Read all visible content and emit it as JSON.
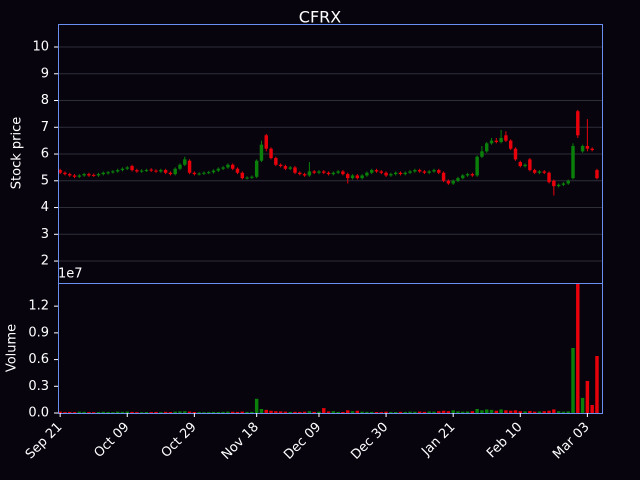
{
  "chart_data": {
    "type": "candlestick",
    "title": "CFRX",
    "ylabel": "Stock price",
    "volume_ylabel": "Volume",
    "volume_offset_label": "1e7",
    "up_color": "#0a7f0a",
    "down_color": "#e8000b",
    "grid": true,
    "x": [
      "Sep 21",
      null,
      null,
      null,
      null,
      null,
      null,
      null,
      null,
      null,
      null,
      null,
      null,
      null,
      "Oct 09",
      null,
      null,
      null,
      null,
      null,
      null,
      null,
      null,
      null,
      null,
      null,
      null,
      null,
      "Oct 29",
      null,
      null,
      null,
      null,
      null,
      null,
      null,
      null,
      null,
      null,
      null,
      null,
      "Nov 18",
      null,
      null,
      null,
      null,
      null,
      null,
      null,
      null,
      null,
      null,
      null,
      null,
      "Dec 09",
      null,
      null,
      null,
      null,
      null,
      null,
      null,
      null,
      null,
      null,
      null,
      null,
      null,
      "Dec 30",
      null,
      null,
      null,
      null,
      null,
      null,
      null,
      null,
      null,
      null,
      null,
      null,
      null,
      "Jan 21",
      null,
      null,
      null,
      null,
      null,
      null,
      null,
      null,
      null,
      null,
      null,
      null,
      null,
      "Feb 10",
      null,
      null,
      null,
      null,
      null,
      null,
      null,
      null,
      null,
      null,
      null,
      null,
      null,
      "Mar 03",
      null,
      null
    ],
    "open": [
      5.4,
      5.3,
      5.25,
      5.2,
      5.15,
      5.2,
      5.25,
      5.22,
      5.2,
      5.25,
      5.28,
      5.32,
      5.35,
      5.4,
      5.45,
      5.55,
      5.4,
      5.35,
      5.38,
      5.42,
      5.38,
      5.35,
      5.4,
      5.3,
      5.25,
      5.45,
      5.6,
      5.75,
      5.3,
      5.25,
      5.27,
      5.3,
      5.32,
      5.38,
      5.45,
      5.5,
      5.6,
      5.45,
      5.3,
      5.1,
      5.12,
      5.15,
      5.75,
      6.7,
      6.2,
      5.85,
      5.6,
      5.55,
      5.45,
      5.5,
      5.3,
      5.25,
      5.2,
      5.35,
      5.3,
      5.35,
      5.3,
      5.25,
      5.3,
      5.35,
      5.25,
      5.1,
      5.2,
      5.1,
      5.2,
      5.3,
      5.4,
      5.35,
      5.3,
      5.2,
      5.25,
      5.3,
      5.25,
      5.3,
      5.35,
      5.4,
      5.35,
      5.3,
      5.35,
      5.4,
      5.3,
      5.0,
      4.9,
      5.0,
      5.1,
      5.2,
      5.25,
      5.2,
      5.9,
      6.1,
      6.4,
      6.5,
      6.45,
      6.7,
      6.5,
      6.2,
      5.7,
      5.55,
      5.8,
      5.4,
      5.3,
      5.35,
      5.3,
      5.0,
      4.8,
      4.85,
      4.9,
      5.1,
      7.6,
      6.1,
      6.3,
      6.2,
      5.4
    ],
    "high": [
      5.45,
      5.35,
      5.3,
      5.25,
      5.25,
      5.3,
      5.3,
      5.27,
      5.3,
      5.35,
      5.37,
      5.4,
      5.45,
      5.5,
      5.55,
      5.6,
      5.45,
      5.43,
      5.45,
      5.47,
      5.43,
      5.45,
      5.45,
      5.35,
      5.5,
      5.65,
      5.9,
      5.8,
      5.35,
      5.32,
      5.35,
      5.37,
      5.43,
      5.5,
      5.55,
      5.65,
      5.65,
      5.5,
      5.35,
      5.17,
      5.2,
      5.8,
      6.5,
      6.75,
      6.25,
      5.9,
      5.65,
      5.6,
      5.55,
      5.55,
      5.35,
      5.3,
      5.7,
      5.4,
      5.4,
      5.4,
      5.35,
      5.35,
      5.4,
      5.4,
      5.3,
      5.25,
      5.25,
      5.25,
      5.35,
      5.45,
      5.45,
      5.4,
      5.35,
      5.3,
      5.35,
      5.35,
      5.35,
      5.4,
      5.45,
      5.45,
      5.4,
      5.4,
      5.45,
      5.45,
      5.35,
      5.05,
      5.05,
      5.15,
      5.25,
      5.3,
      5.3,
      5.95,
      6.3,
      6.45,
      6.6,
      6.6,
      6.9,
      6.85,
      6.55,
      6.25,
      5.75,
      5.65,
      5.85,
      5.45,
      5.4,
      5.4,
      5.35,
      5.05,
      4.9,
      4.95,
      5.05,
      6.4,
      7.65,
      6.35,
      7.3,
      6.25,
      5.45
    ],
    "low": [
      5.25,
      5.2,
      5.15,
      5.1,
      5.1,
      5.15,
      5.15,
      5.15,
      5.15,
      5.2,
      5.23,
      5.27,
      5.3,
      5.35,
      5.4,
      5.35,
      5.3,
      5.3,
      5.33,
      5.33,
      5.3,
      5.3,
      5.25,
      5.2,
      5.2,
      5.4,
      5.55,
      5.25,
      5.2,
      5.2,
      5.22,
      5.25,
      5.27,
      5.33,
      5.4,
      5.45,
      5.4,
      5.25,
      5.05,
      5.05,
      5.07,
      5.1,
      5.7,
      6.1,
      5.8,
      5.55,
      5.5,
      5.4,
      5.4,
      5.25,
      5.2,
      5.15,
      5.15,
      5.25,
      5.25,
      5.25,
      5.2,
      5.2,
      5.25,
      5.2,
      4.9,
      5.05,
      5.05,
      5.05,
      5.15,
      5.25,
      5.3,
      5.25,
      5.15,
      5.15,
      5.2,
      5.2,
      5.2,
      5.25,
      5.3,
      5.3,
      5.25,
      5.25,
      5.3,
      5.25,
      4.95,
      4.85,
      4.85,
      4.95,
      5.05,
      5.15,
      5.15,
      5.15,
      5.85,
      6.05,
      6.35,
      6.4,
      6.4,
      6.45,
      6.15,
      5.75,
      5.5,
      5.5,
      5.35,
      5.25,
      5.25,
      5.25,
      4.9,
      4.45,
      4.75,
      4.8,
      4.85,
      5.05,
      6.6,
      6.05,
      6.1,
      6.1,
      5.05
    ],
    "close": [
      5.3,
      5.25,
      5.2,
      5.15,
      5.2,
      5.25,
      5.2,
      5.2,
      5.25,
      5.3,
      5.32,
      5.35,
      5.4,
      5.45,
      5.5,
      5.4,
      5.35,
      5.38,
      5.4,
      5.38,
      5.35,
      5.4,
      5.3,
      5.25,
      5.45,
      5.6,
      5.8,
      5.3,
      5.25,
      5.27,
      5.3,
      5.32,
      5.38,
      5.45,
      5.5,
      5.6,
      5.45,
      5.3,
      5.1,
      5.12,
      5.15,
      5.75,
      6.35,
      6.2,
      5.85,
      5.6,
      5.55,
      5.45,
      5.5,
      5.3,
      5.25,
      5.2,
      5.35,
      5.3,
      5.35,
      5.3,
      5.25,
      5.3,
      5.35,
      5.25,
      5.1,
      5.2,
      5.1,
      5.2,
      5.3,
      5.4,
      5.35,
      5.3,
      5.2,
      5.25,
      5.3,
      5.25,
      5.3,
      5.35,
      5.4,
      5.35,
      5.3,
      5.35,
      5.4,
      5.3,
      5.0,
      4.9,
      5.0,
      5.1,
      5.2,
      5.25,
      5.2,
      5.9,
      6.1,
      6.4,
      6.5,
      6.45,
      6.6,
      6.5,
      6.2,
      5.8,
      5.55,
      5.6,
      5.4,
      5.3,
      5.35,
      5.3,
      4.95,
      4.8,
      4.85,
      4.9,
      5.0,
      6.3,
      6.7,
      6.3,
      6.2,
      6.15,
      5.1
    ],
    "volume": [
      150000,
      100000,
      120000,
      100000,
      150000,
      130000,
      100000,
      90000,
      110000,
      140000,
      120000,
      100000,
      150000,
      130000,
      160000,
      120000,
      100000,
      90000,
      110000,
      100000,
      120000,
      100000,
      130000,
      110000,
      150000,
      180000,
      200000,
      160000,
      110000,
      100000,
      90000,
      100000,
      120000,
      110000,
      130000,
      150000,
      140000,
      120000,
      160000,
      120000,
      130000,
      1600000,
      450000,
      350000,
      250000,
      200000,
      180000,
      150000,
      120000,
      130000,
      120000,
      150000,
      200000,
      130000,
      150000,
      550000,
      180000,
      200000,
      120000,
      110000,
      300000,
      200000,
      250000,
      150000,
      130000,
      120000,
      110000,
      100000,
      150000,
      120000,
      110000,
      130000,
      120000,
      150000,
      140000,
      160000,
      130000,
      170000,
      150000,
      200000,
      250000,
      200000,
      300000,
      180000,
      150000,
      170000,
      200000,
      450000,
      300000,
      400000,
      350000,
      250000,
      400000,
      300000,
      250000,
      300000,
      200000,
      180000,
      220000,
      150000,
      170000,
      200000,
      250000,
      400000,
      200000,
      150000,
      180000,
      7300000,
      14600000,
      1700000,
      3600000,
      900000,
      6400000
    ],
    "ylim": [
      1.18,
      10.86
    ],
    "yticks": [
      2,
      3,
      4,
      5,
      6,
      7,
      8,
      9,
      10
    ],
    "volume_ylim": [
      0,
      14600000
    ],
    "volume_yticks": [
      {
        "value": 0,
        "label": "0.0"
      },
      {
        "value": 3000000,
        "label": "0.3"
      },
      {
        "value": 6000000,
        "label": "0.6"
      },
      {
        "value": 9000000,
        "label": "0.9"
      },
      {
        "value": 12000000,
        "label": "1.2"
      }
    ]
  }
}
